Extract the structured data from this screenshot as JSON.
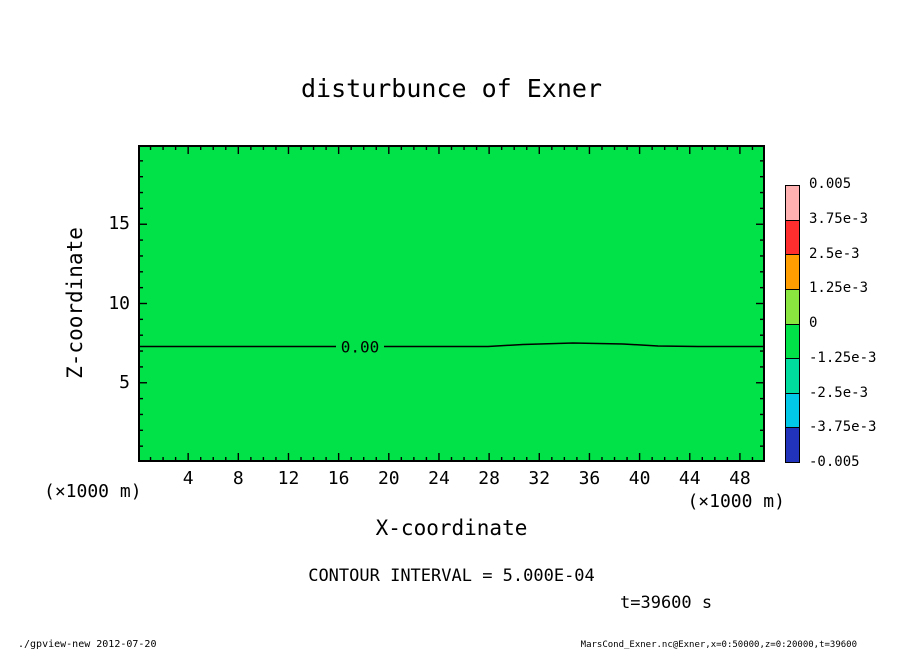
{
  "annotations": {
    "contour_interval": "CONTOUR INTERVAL = 5.000E-04",
    "time": "t=39600 s"
  },
  "footer": {
    "left": "./gpview-new  2012-07-20",
    "right": "MarsCond_Exner.nc@Exner,x=0:50000,z=0:20000,t=39600"
  },
  "chart_data": {
    "type": "heatmap",
    "title": "disturbunce of Exner",
    "xlabel": "X-coordinate",
    "ylabel": "Z-coordinate",
    "x_unit": "(×1000 m)",
    "y_unit": "(×1000 m)",
    "xlim": [
      0,
      50
    ],
    "ylim": [
      0,
      20
    ],
    "x_major_ticks": [
      4,
      8,
      12,
      16,
      20,
      24,
      28,
      32,
      36,
      40,
      44,
      48
    ],
    "y_major_ticks": [
      5,
      10,
      15
    ],
    "x_major_step": 4,
    "y_major_step": 5,
    "x_minor_step": 1,
    "y_minor_step": 1,
    "grid": false,
    "background_color": "#00e247",
    "field_description": "Exner function disturbance, essentially uniform near zero over the whole domain",
    "contour_interval_value": 0.0005,
    "time_s": 39600,
    "contours": [
      {
        "level": 0.0,
        "label": "0.00",
        "z": 7.3
      }
    ],
    "colorbar": {
      "position": "right",
      "tick_labels": [
        "0.005",
        "3.75e-3",
        "2.5e-3",
        "1.25e-3",
        "0",
        "-1.25e-3",
        "-2.5e-3",
        "-3.75e-3",
        "-0.005"
      ],
      "tick_values": [
        0.005,
        0.00375,
        0.0025,
        0.00125,
        0,
        -0.00125,
        -0.0025,
        -0.00375,
        -0.005
      ],
      "segment_colors": [
        "#ffb0b0",
        "#ff2e2e",
        "#ff9e00",
        "#8ae63e",
        "#00e247",
        "#00dc9e",
        "#00c8e6",
        "#2233bb"
      ]
    }
  }
}
